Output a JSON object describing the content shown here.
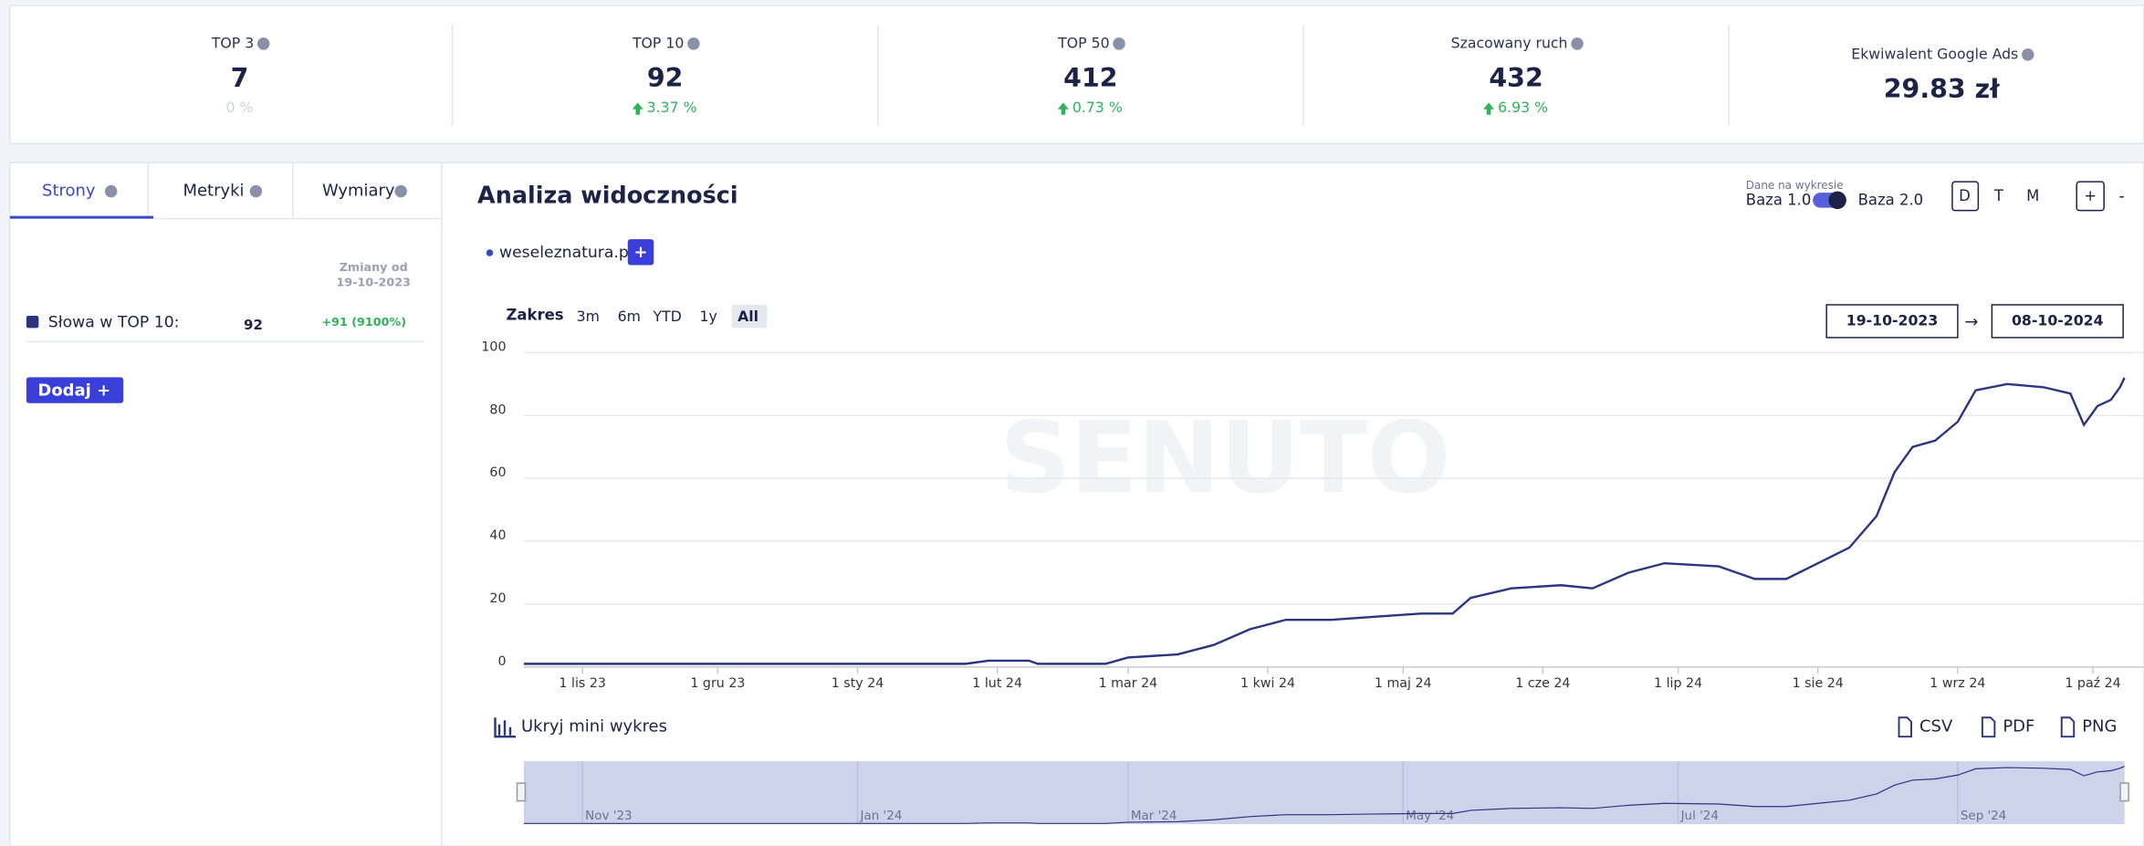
{
  "stats": [
    {
      "label": "TOP 3",
      "value": "7",
      "change": "0 %"
    },
    {
      "label": "TOP 10",
      "value": "92",
      "change": "3.37 %"
    },
    {
      "label": "TOP 50",
      "value": "412",
      "change": "0.73 %"
    },
    {
      "label": "Szacowany ruch",
      "value": "432",
      "change": "6.93 %"
    },
    {
      "label": "Ekwiwalent Google Ads",
      "value": "29.83 zł"
    }
  ],
  "tabs": [
    "Strony",
    "Metryki",
    "Wymiary"
  ],
  "sidebar": {
    "changes_header": "Zmiany od",
    "changes_date": "19-10-2023",
    "row_label": "Słowa w TOP 10:",
    "row_value": "92",
    "row_change": "+91 (9100%)",
    "add_button": "Dodaj +"
  },
  "header": {
    "title": "Analiza widoczności",
    "data_caption": "Dane na wykresie",
    "base1": "Baza 1.0",
    "base2": "Baza 2.0",
    "periods": [
      "D",
      "T",
      "M"
    ],
    "zoom_in": "+",
    "zoom_out": "-"
  },
  "toolbar": {
    "range_label": "Zakres",
    "ranges": [
      "3m",
      "6m",
      "YTD",
      "1y",
      "All"
    ],
    "date_from": "19-10-2023",
    "arrow": "→",
    "date_to": "08-10-2024",
    "add_series": "+",
    "hide_mini": "Ukryj mini wykres",
    "exports": [
      "CSV",
      "PDF",
      "PNG"
    ]
  },
  "chart_data": {
    "type": "line",
    "watermark": "SENUTO",
    "x": [
      "2023-10-19",
      "2023-11-01",
      "2023-11-15",
      "2023-12-01",
      "2023-12-15",
      "2024-01-01",
      "2024-01-15",
      "2024-01-25",
      "2024-01-30",
      "2024-02-08",
      "2024-02-10",
      "2024-02-25",
      "2024-03-01",
      "2024-03-12",
      "2024-03-20",
      "2024-03-28",
      "2024-04-05",
      "2024-04-15",
      "2024-04-25",
      "2024-05-05",
      "2024-05-12",
      "2024-05-16",
      "2024-05-25",
      "2024-06-05",
      "2024-06-12",
      "2024-06-20",
      "2024-06-28",
      "2024-07-10",
      "2024-07-18",
      "2024-07-25",
      "2024-08-01",
      "2024-08-08",
      "2024-08-14",
      "2024-08-18",
      "2024-08-22",
      "2024-08-27",
      "2024-09-01",
      "2024-09-05",
      "2024-09-12",
      "2024-09-20",
      "2024-09-26",
      "2024-09-29",
      "2024-10-02",
      "2024-10-05",
      "2024-10-07",
      "2024-10-08"
    ],
    "series": [
      {
        "name": "weseleznatura.pl",
        "color": "#2b3580",
        "values": [
          1,
          1,
          1,
          1,
          1,
          1,
          1,
          1,
          2,
          2,
          1,
          1,
          3,
          4,
          7,
          12,
          15,
          15,
          16,
          17,
          17,
          22,
          25,
          26,
          25,
          30,
          33,
          32,
          28,
          28,
          33,
          38,
          48,
          62,
          70,
          72,
          78,
          88,
          90,
          89,
          87,
          77,
          83,
          85,
          89,
          92
        ]
      }
    ],
    "xlim": [
      "2023-10-19",
      "2024-10-08"
    ],
    "xticks": [
      {
        "value": "2023-11-01",
        "label": "1 lis 23"
      },
      {
        "value": "2023-12-01",
        "label": "1 gru 23"
      },
      {
        "value": "2024-01-01",
        "label": "1 sty 24"
      },
      {
        "value": "2024-02-01",
        "label": "1 lut 24"
      },
      {
        "value": "2024-03-01",
        "label": "1 mar 24"
      },
      {
        "value": "2024-04-01",
        "label": "1 kwi 24"
      },
      {
        "value": "2024-05-01",
        "label": "1 maj 24"
      },
      {
        "value": "2024-06-01",
        "label": "1 cze 24"
      },
      {
        "value": "2024-07-01",
        "label": "1 lip 24"
      },
      {
        "value": "2024-08-01",
        "label": "1 sie 24"
      },
      {
        "value": "2024-09-01",
        "label": "1 wrz 24"
      },
      {
        "value": "2024-10-01",
        "label": "1 paź 24"
      }
    ],
    "ylim": [
      0,
      100
    ],
    "yticks": [
      0,
      20,
      40,
      60,
      80,
      100
    ],
    "grid": true,
    "navigator_ticks": [
      {
        "value": "2023-11-01",
        "label": "Nov '23"
      },
      {
        "value": "2024-01-01",
        "label": "Jan '24"
      },
      {
        "value": "2024-03-01",
        "label": "Mar '24"
      },
      {
        "value": "2024-05-01",
        "label": "May '24"
      },
      {
        "value": "2024-07-01",
        "label": "Jul '24"
      },
      {
        "value": "2024-09-01",
        "label": "Sep '24"
      }
    ]
  }
}
